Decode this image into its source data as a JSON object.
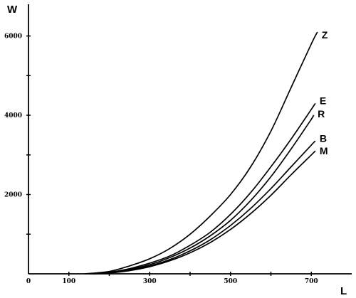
{
  "chart_data": {
    "type": "line",
    "title": "",
    "xlabel": "L",
    "ylabel": "W",
    "xlim": [
      0,
      800
    ],
    "ylim": [
      0,
      6800
    ],
    "grid": false,
    "x_ticks": [
      {
        "value": 0,
        "label": "0"
      },
      {
        "value": 100,
        "label": "100"
      },
      {
        "value": 300,
        "label": "300"
      },
      {
        "value": 500,
        "label": "500"
      },
      {
        "value": 700,
        "label": "700"
      }
    ],
    "x_minor_ticks": [
      200,
      400,
      600
    ],
    "y_ticks": [
      {
        "value": 2000,
        "label": "2000"
      },
      {
        "value": 4000,
        "label": "4000"
      },
      {
        "value": 6000,
        "label": "6000"
      }
    ],
    "y_minor_ticks": [
      1000,
      3000,
      5000
    ],
    "series": [
      {
        "name": "Z",
        "x": [
          140,
          200,
          250,
          300,
          350,
          400,
          450,
          500,
          550,
          600,
          650,
          700,
          715
        ],
        "y": [
          0,
          60,
          200,
          380,
          640,
          1000,
          1460,
          2000,
          2700,
          3600,
          4700,
          5800,
          6100
        ]
      },
      {
        "name": "E",
        "x": [
          150,
          200,
          250,
          300,
          350,
          400,
          450,
          500,
          550,
          600,
          650,
          700,
          710
        ],
        "y": [
          0,
          40,
          130,
          270,
          450,
          720,
          1050,
          1500,
          2050,
          2700,
          3400,
          4150,
          4300
        ]
      },
      {
        "name": "R",
        "x": [
          150,
          200,
          250,
          300,
          350,
          400,
          450,
          500,
          550,
          600,
          650,
          700,
          705
        ],
        "y": [
          0,
          30,
          110,
          230,
          410,
          650,
          960,
          1350,
          1850,
          2450,
          3150,
          3900,
          4000
        ]
      },
      {
        "name": "B",
        "x": [
          160,
          200,
          250,
          300,
          350,
          400,
          450,
          500,
          550,
          600,
          650,
          700,
          710
        ],
        "y": [
          0,
          25,
          90,
          200,
          360,
          580,
          860,
          1220,
          1650,
          2150,
          2700,
          3250,
          3350
        ]
      },
      {
        "name": "M",
        "x": [
          160,
          200,
          250,
          300,
          350,
          400,
          450,
          500,
          550,
          600,
          650,
          700,
          710
        ],
        "y": [
          0,
          20,
          80,
          180,
          330,
          530,
          790,
          1120,
          1520,
          1980,
          2500,
          3000,
          3100
        ]
      }
    ]
  }
}
